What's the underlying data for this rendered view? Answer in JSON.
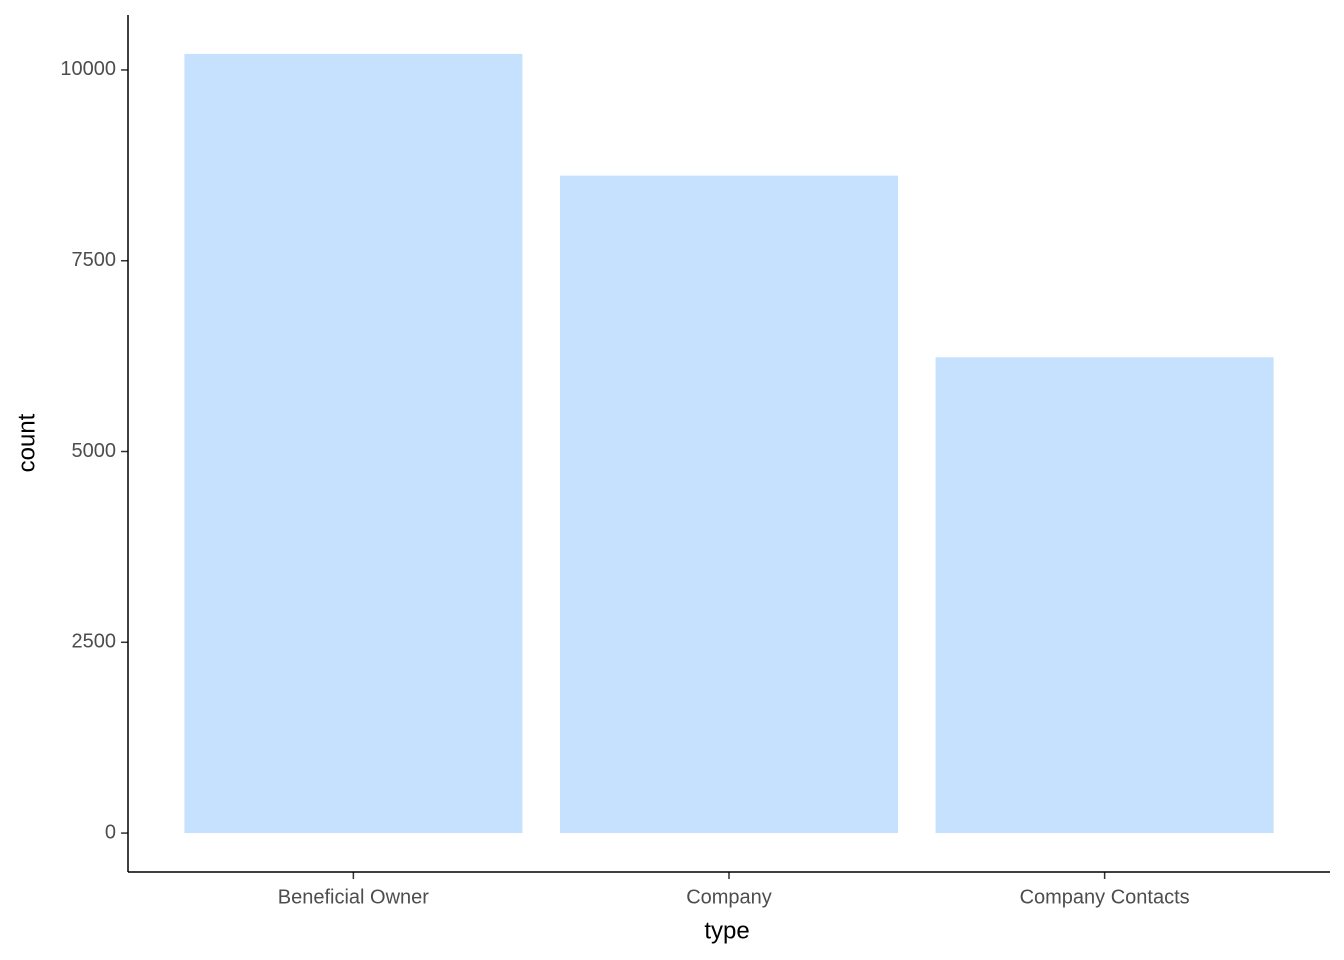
{
  "chart_data": {
    "type": "bar",
    "x_label": "type",
    "y_label": "count",
    "categories": [
      "Beneficial Owner",
      "Company",
      "Company Contacts"
    ],
    "values": [
      10210,
      8615,
      6235
    ],
    "color": "#c6e1fd",
    "ylim": [
      -510,
      10720
    ],
    "yticks": [
      0,
      2500,
      5000,
      7500,
      10000
    ],
    "grid": false
  }
}
